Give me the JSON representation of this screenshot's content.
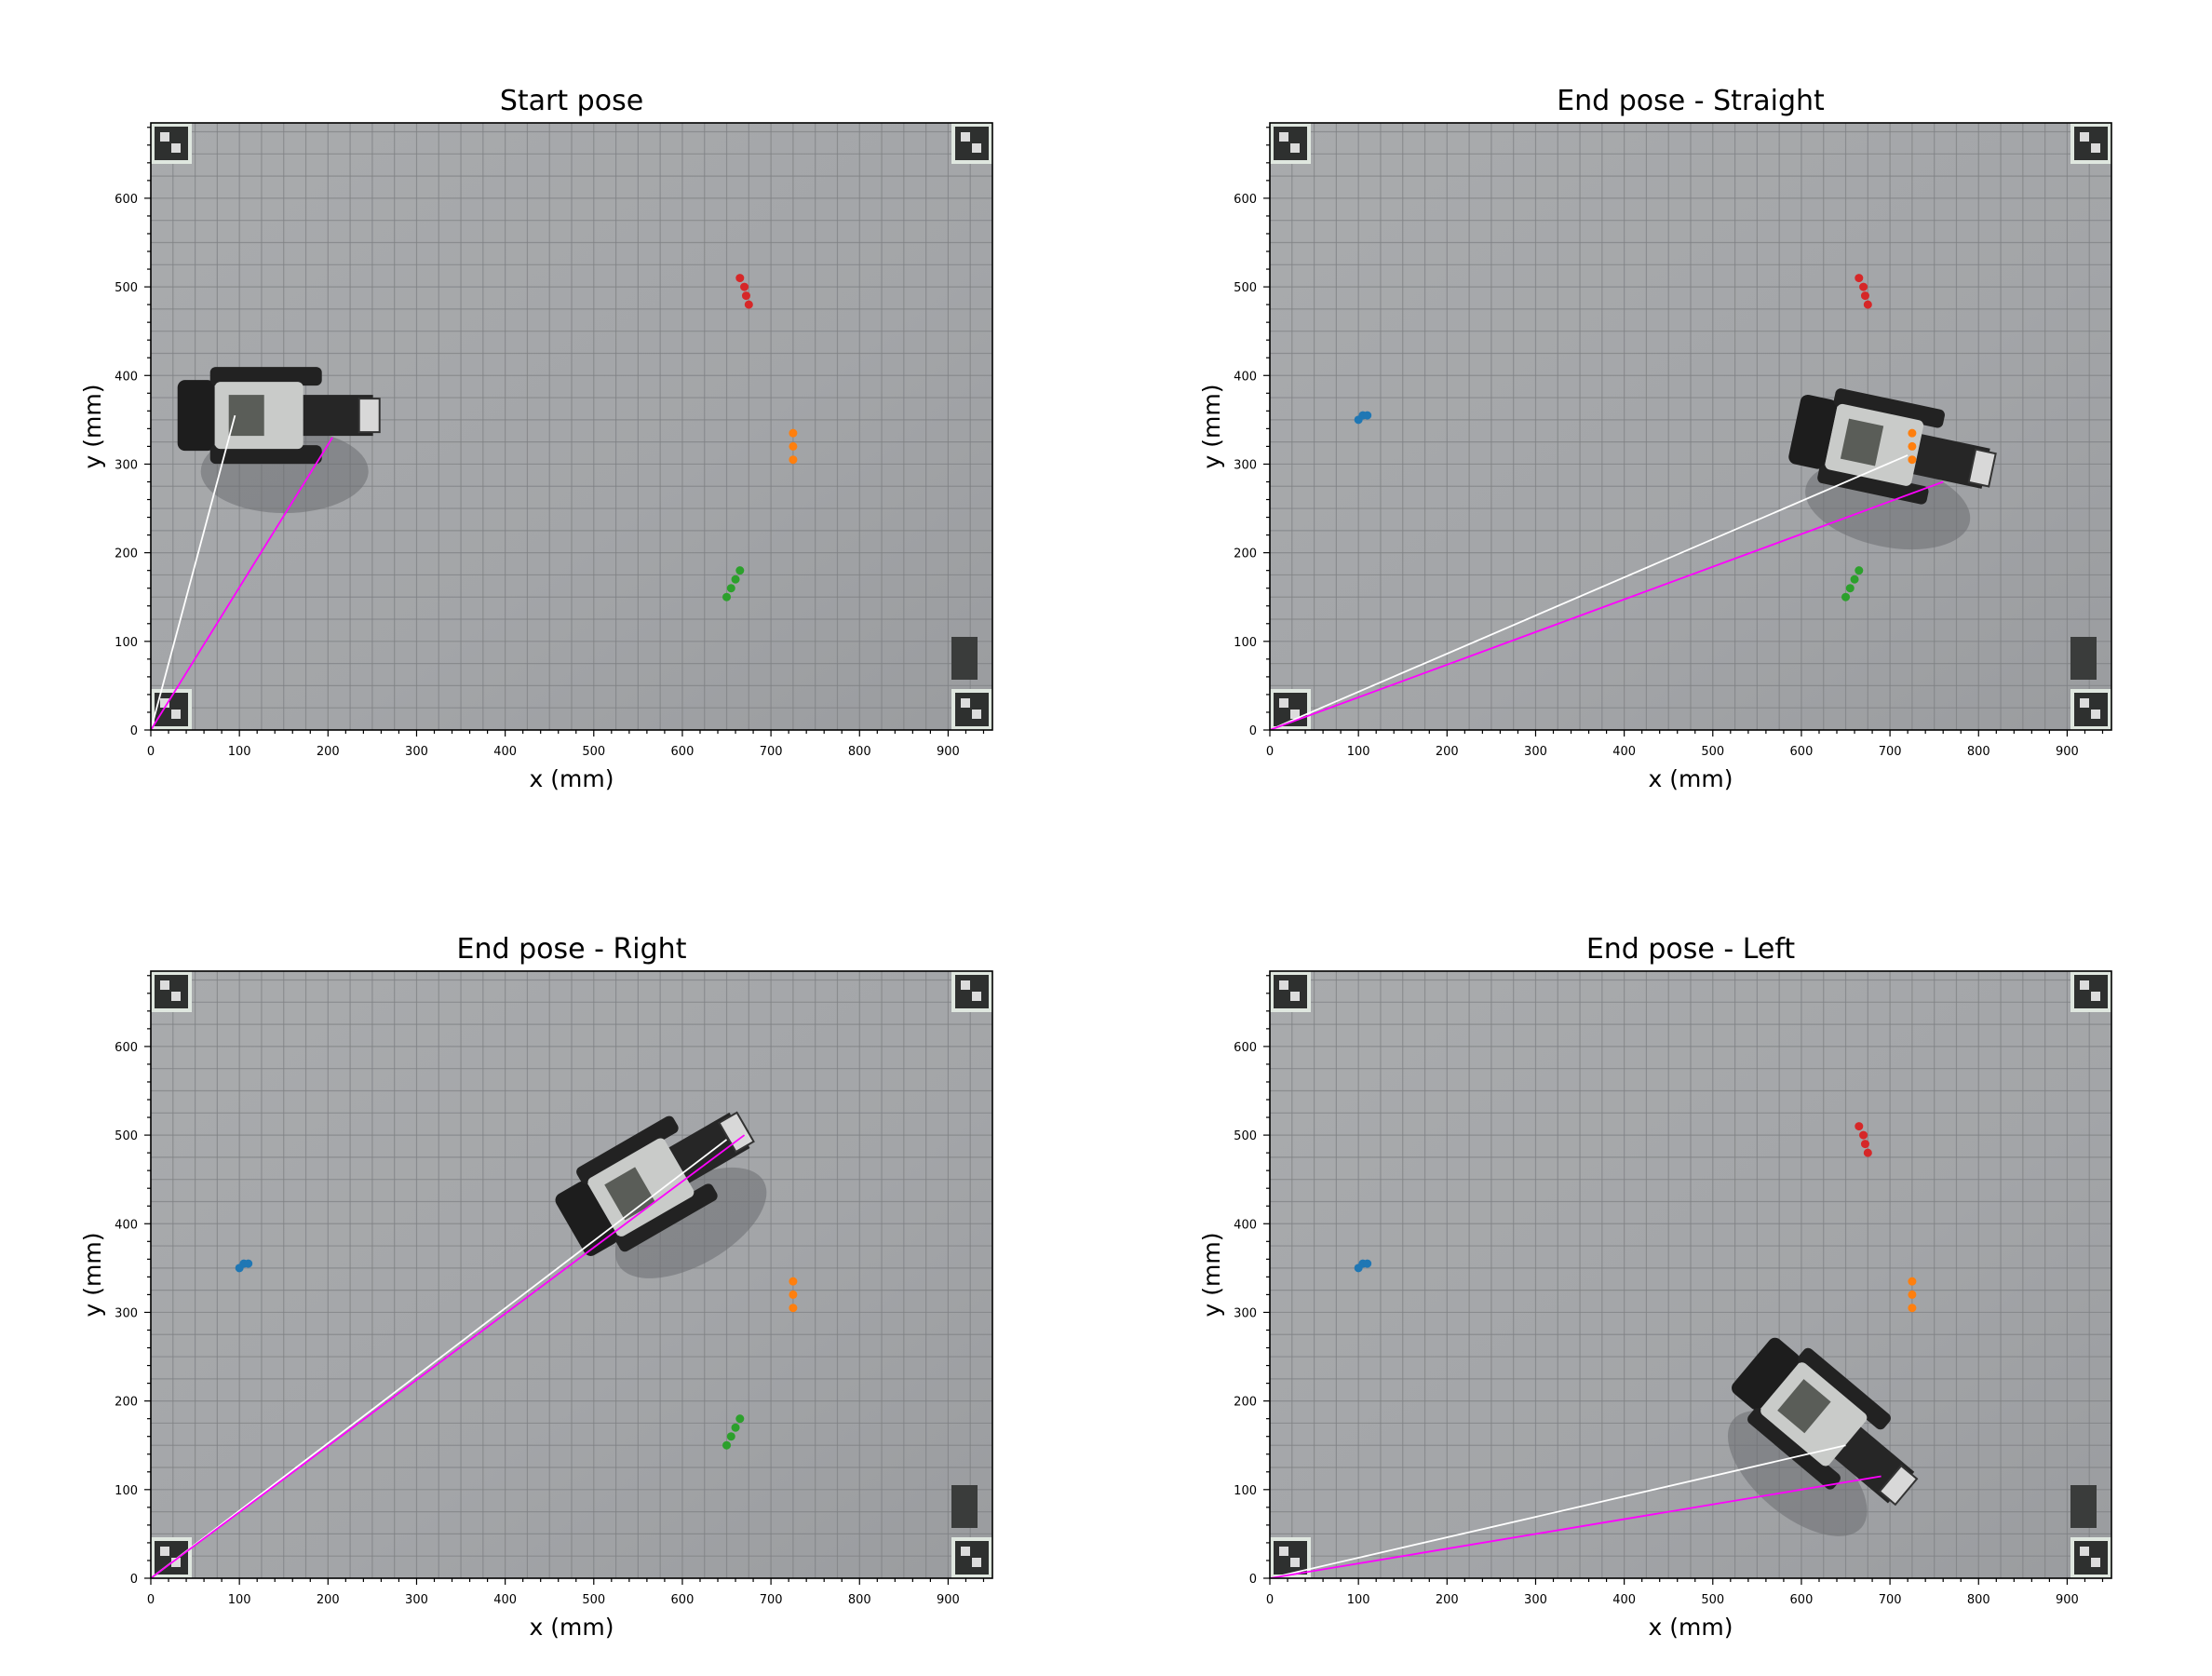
{
  "figure": {
    "panels": [
      {
        "title": "Start pose",
        "robot_angle_deg": 0,
        "robot_center": [
          130,
          355
        ],
        "white_line_end": [
          95,
          355
        ],
        "magenta_line_end": [
          205,
          330
        ],
        "markers": [
          "red",
          "orange",
          "green"
        ]
      },
      {
        "title": "End pose - Straight",
        "robot_angle_deg": -12,
        "robot_center": [
          690,
          320
        ],
        "white_line_end": [
          720,
          310
        ],
        "magenta_line_end": [
          760,
          280
        ],
        "markers": [
          "blue",
          "red",
          "orange",
          "green"
        ]
      },
      {
        "title": "End pose - Right",
        "robot_angle_deg": 30,
        "robot_center": [
          560,
          445
        ],
        "white_line_end": [
          650,
          495
        ],
        "magenta_line_end": [
          670,
          500
        ],
        "markers": [
          "blue",
          "orange",
          "green"
        ]
      },
      {
        "title": "End pose - Left",
        "robot_angle_deg": -40,
        "robot_center": [
          620,
          180
        ],
        "white_line_end": [
          650,
          150
        ],
        "magenta_line_end": [
          690,
          115
        ],
        "markers": [
          "blue",
          "red",
          "orange"
        ]
      }
    ]
  },
  "chart_data": [
    {
      "type": "scatter",
      "title": "Start pose",
      "xlabel": "x (mm)",
      "ylabel": "y (mm)",
      "xlim": [
        0,
        950
      ],
      "ylim": [
        0,
        685
      ],
      "xticks": [
        0,
        100,
        200,
        300,
        400,
        500,
        600,
        700,
        800,
        900
      ],
      "yticks": [
        0,
        100,
        200,
        300,
        400,
        500,
        600
      ],
      "series": [
        {
          "color": "#d62728",
          "points": [
            [
              665,
              510
            ],
            [
              670,
              500
            ],
            [
              672,
              490
            ],
            [
              675,
              480
            ]
          ]
        },
        {
          "color": "#ff7f0e",
          "points": [
            [
              725,
              335
            ],
            [
              725,
              320
            ],
            [
              725,
              305
            ]
          ]
        },
        {
          "color": "#2ca02c",
          "points": [
            [
              650,
              150
            ],
            [
              655,
              160
            ],
            [
              660,
              170
            ],
            [
              665,
              180
            ]
          ]
        }
      ],
      "lines": [
        {
          "color": "#ffffff",
          "from": [
            0,
            0
          ],
          "to": [
            95,
            355
          ]
        },
        {
          "color": "#ff00ff",
          "from": [
            0,
            0
          ],
          "to": [
            205,
            330
          ]
        }
      ]
    },
    {
      "type": "scatter",
      "title": "End pose - Straight",
      "xlabel": "x (mm)",
      "ylabel": "y (mm)",
      "xlim": [
        0,
        950
      ],
      "ylim": [
        0,
        685
      ],
      "xticks": [
        0,
        100,
        200,
        300,
        400,
        500,
        600,
        700,
        800,
        900
      ],
      "yticks": [
        0,
        100,
        200,
        300,
        400,
        500,
        600
      ],
      "series": [
        {
          "color": "#1f77b4",
          "points": [
            [
              100,
              350
            ],
            [
              105,
              355
            ],
            [
              110,
              355
            ]
          ]
        },
        {
          "color": "#d62728",
          "points": [
            [
              665,
              510
            ],
            [
              670,
              500
            ],
            [
              672,
              490
            ],
            [
              675,
              480
            ]
          ]
        },
        {
          "color": "#ff7f0e",
          "points": [
            [
              725,
              335
            ],
            [
              725,
              320
            ],
            [
              725,
              305
            ]
          ]
        },
        {
          "color": "#2ca02c",
          "points": [
            [
              650,
              150
            ],
            [
              655,
              160
            ],
            [
              660,
              170
            ],
            [
              665,
              180
            ]
          ]
        }
      ],
      "lines": [
        {
          "color": "#ffffff",
          "from": [
            0,
            0
          ],
          "to": [
            720,
            310
          ]
        },
        {
          "color": "#ff00ff",
          "from": [
            0,
            0
          ],
          "to": [
            760,
            280
          ]
        }
      ]
    },
    {
      "type": "scatter",
      "title": "End pose - Right",
      "xlabel": "x (mm)",
      "ylabel": "y (mm)",
      "xlim": [
        0,
        950
      ],
      "ylim": [
        0,
        685
      ],
      "xticks": [
        0,
        100,
        200,
        300,
        400,
        500,
        600,
        700,
        800,
        900
      ],
      "yticks": [
        0,
        100,
        200,
        300,
        400,
        500,
        600
      ],
      "series": [
        {
          "color": "#1f77b4",
          "points": [
            [
              100,
              350
            ],
            [
              105,
              355
            ],
            [
              110,
              355
            ]
          ]
        },
        {
          "color": "#ff7f0e",
          "points": [
            [
              725,
              335
            ],
            [
              725,
              320
            ],
            [
              725,
              305
            ]
          ]
        },
        {
          "color": "#2ca02c",
          "points": [
            [
              650,
              150
            ],
            [
              655,
              160
            ],
            [
              660,
              170
            ],
            [
              665,
              180
            ]
          ]
        }
      ],
      "lines": [
        {
          "color": "#ffffff",
          "from": [
            0,
            0
          ],
          "to": [
            650,
            495
          ]
        },
        {
          "color": "#ff00ff",
          "from": [
            0,
            0
          ],
          "to": [
            670,
            500
          ]
        }
      ]
    },
    {
      "type": "scatter",
      "title": "End pose - Left",
      "xlabel": "x (mm)",
      "ylabel": "y (mm)",
      "xlim": [
        0,
        950
      ],
      "ylim": [
        0,
        685
      ],
      "xticks": [
        0,
        100,
        200,
        300,
        400,
        500,
        600,
        700,
        800,
        900
      ],
      "yticks": [
        0,
        100,
        200,
        300,
        400,
        500,
        600
      ],
      "series": [
        {
          "color": "#1f77b4",
          "points": [
            [
              100,
              350
            ],
            [
              105,
              355
            ],
            [
              110,
              355
            ]
          ]
        },
        {
          "color": "#d62728",
          "points": [
            [
              665,
              510
            ],
            [
              670,
              500
            ],
            [
              672,
              490
            ],
            [
              675,
              480
            ]
          ]
        },
        {
          "color": "#ff7f0e",
          "points": [
            [
              725,
              335
            ],
            [
              725,
              320
            ],
            [
              725,
              305
            ]
          ]
        }
      ],
      "lines": [
        {
          "color": "#ffffff",
          "from": [
            0,
            0
          ],
          "to": [
            650,
            150
          ]
        },
        {
          "color": "#ff00ff",
          "from": [
            0,
            0
          ],
          "to": [
            690,
            115
          ]
        }
      ]
    }
  ]
}
